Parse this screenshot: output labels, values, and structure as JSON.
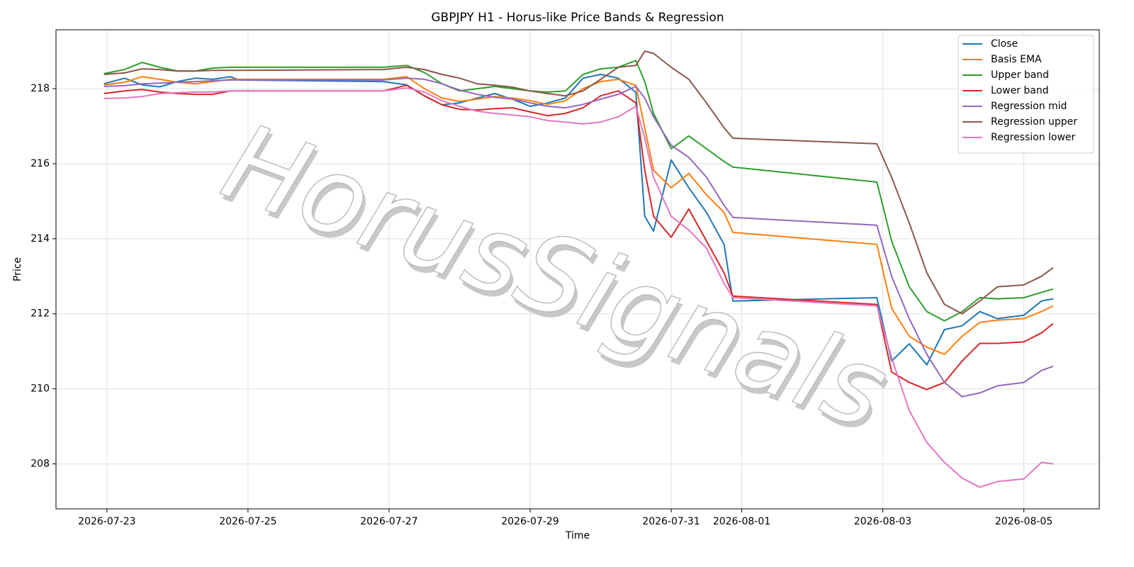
{
  "chart_data": {
    "type": "line",
    "title": "GBPJPY H1 - Horus-like Price Bands & Regression",
    "xlabel": "Time",
    "ylabel": "Price",
    "watermark": "HorusSignals",
    "grid": true,
    "legend": "upper right",
    "x": [
      "2026-07-22T23:00",
      "2026-07-23T06:00",
      "2026-07-23T12:00",
      "2026-07-23T18:00",
      "2026-07-24T00:00",
      "2026-07-24T06:00",
      "2026-07-24T12:00",
      "2026-07-24T18:00",
      "2026-07-24T21:00",
      "2026-07-26T22:00",
      "2026-07-27T06:00",
      "2026-07-27T12:00",
      "2026-07-27T18:00",
      "2026-07-28T00:00",
      "2026-07-28T06:00",
      "2026-07-28T12:00",
      "2026-07-28T18:00",
      "2026-07-29T00:00",
      "2026-07-29T06:00",
      "2026-07-29T12:00",
      "2026-07-29T18:00",
      "2026-07-30T00:00",
      "2026-07-30T06:00",
      "2026-07-30T12:00",
      "2026-07-30T15:00",
      "2026-07-30T18:00",
      "2026-07-31T00:00",
      "2026-07-31T06:00",
      "2026-07-31T12:00",
      "2026-07-31T18:00",
      "2026-07-31T21:00",
      "2026-08-02T22:00",
      "2026-08-03T03:00",
      "2026-08-03T09:00",
      "2026-08-03T15:00",
      "2026-08-03T21:00",
      "2026-08-04T03:00",
      "2026-08-04T09:00",
      "2026-08-04T15:00",
      "2026-08-05T00:00",
      "2026-08-05T06:00",
      "2026-08-05T10:00"
    ],
    "xlim": [
      "2026-07-22T06:40",
      "2026-08-06T01:40"
    ],
    "xticks": [
      "2026-07-23",
      "2026-07-25",
      "2026-07-27",
      "2026-07-29",
      "2026-07-31",
      "2026-08-01",
      "2026-08-03",
      "2026-08-05"
    ],
    "ylim": [
      206.8,
      219.57
    ],
    "yticks": [
      208,
      210,
      212,
      214,
      216,
      218
    ],
    "series": [
      {
        "name": "Close",
        "color": "#1f77b4",
        "values": [
          218.13,
          218.28,
          218.1,
          218.05,
          218.19,
          218.28,
          218.25,
          218.32,
          218.23,
          218.19,
          218.1,
          217.81,
          217.57,
          217.62,
          217.75,
          217.87,
          217.72,
          217.53,
          217.62,
          217.75,
          218.28,
          218.38,
          218.28,
          217.9,
          214.6,
          214.2,
          216.1,
          215.36,
          214.7,
          213.85,
          212.34,
          212.43,
          210.74,
          211.2,
          210.64,
          211.58,
          211.68,
          212.06,
          211.87,
          211.96,
          212.34,
          212.4
        ]
      },
      {
        "name": "Basis EMA",
        "color": "#ff7f0e",
        "values": [
          218.1,
          218.17,
          218.32,
          218.25,
          218.17,
          218.13,
          218.19,
          218.25,
          218.25,
          218.25,
          218.32,
          218.0,
          217.75,
          217.66,
          217.72,
          217.79,
          217.75,
          217.68,
          217.58,
          217.68,
          218.0,
          218.19,
          218.25,
          218.09,
          216.96,
          215.83,
          215.36,
          215.74,
          215.17,
          214.7,
          214.17,
          213.85,
          212.15,
          211.4,
          211.11,
          210.92,
          211.4,
          211.77,
          211.83,
          211.87,
          212.06,
          212.21
        ]
      },
      {
        "name": "Upper band",
        "color": "#2ca02c",
        "values": [
          218.4,
          218.51,
          218.7,
          218.57,
          218.47,
          218.47,
          218.55,
          218.57,
          218.57,
          218.57,
          218.62,
          218.43,
          218.13,
          217.94,
          218.0,
          218.06,
          218.0,
          217.94,
          217.91,
          217.94,
          218.38,
          218.53,
          218.57,
          218.75,
          218.19,
          217.34,
          216.4,
          216.74,
          216.4,
          216.06,
          215.91,
          215.51,
          213.94,
          212.72,
          212.06,
          211.81,
          212.06,
          212.43,
          212.4,
          212.43,
          212.57,
          212.66
        ]
      },
      {
        "name": "Lower band",
        "color": "#d62728",
        "values": [
          217.87,
          217.94,
          217.98,
          217.91,
          217.87,
          217.85,
          217.85,
          217.94,
          217.94,
          217.94,
          218.09,
          217.81,
          217.57,
          217.45,
          217.43,
          217.47,
          217.49,
          217.38,
          217.28,
          217.34,
          217.49,
          217.81,
          217.94,
          217.62,
          215.83,
          214.6,
          214.04,
          214.79,
          213.94,
          213.09,
          212.47,
          212.25,
          210.45,
          210.17,
          209.98,
          210.17,
          210.74,
          211.21,
          211.21,
          211.25,
          211.49,
          211.74
        ]
      },
      {
        "name": "Regression mid",
        "color": "#9467bd",
        "values": [
          218.06,
          218.08,
          218.13,
          218.15,
          218.17,
          218.19,
          218.21,
          218.23,
          218.23,
          218.23,
          218.28,
          218.25,
          218.13,
          217.96,
          217.85,
          217.77,
          217.72,
          217.62,
          217.53,
          217.49,
          217.58,
          217.72,
          217.85,
          218.06,
          217.75,
          217.25,
          216.49,
          216.17,
          215.64,
          214.89,
          214.57,
          214.36,
          213.0,
          211.87,
          210.92,
          210.17,
          209.79,
          209.89,
          210.08,
          210.17,
          210.49,
          210.6
        ]
      },
      {
        "name": "Regression upper",
        "color": "#8c564b",
        "values": [
          218.38,
          218.42,
          218.53,
          218.51,
          218.47,
          218.47,
          218.49,
          218.49,
          218.49,
          218.51,
          218.57,
          218.51,
          218.38,
          218.28,
          218.13,
          218.09,
          218.04,
          217.94,
          217.87,
          217.81,
          217.94,
          218.25,
          218.57,
          218.62,
          219.0,
          218.94,
          218.57,
          218.25,
          217.62,
          216.96,
          216.68,
          216.53,
          215.64,
          214.42,
          213.09,
          212.25,
          212.0,
          212.34,
          212.72,
          212.77,
          213.0,
          213.23
        ]
      },
      {
        "name": "Regression lower",
        "color": "#e377c2",
        "values": [
          217.74,
          217.75,
          217.79,
          217.87,
          217.89,
          217.91,
          217.91,
          217.94,
          217.94,
          217.94,
          218.02,
          217.91,
          217.68,
          217.53,
          217.4,
          217.34,
          217.3,
          217.25,
          217.15,
          217.11,
          217.06,
          217.11,
          217.25,
          217.53,
          216.68,
          215.64,
          214.6,
          214.23,
          213.75,
          212.81,
          212.43,
          212.21,
          210.83,
          209.42,
          208.57,
          208.04,
          207.62,
          207.38,
          207.53,
          207.6,
          208.04,
          208.0
        ]
      }
    ]
  }
}
